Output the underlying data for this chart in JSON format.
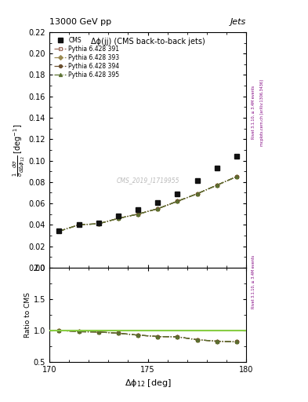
{
  "title_top": "13000 GeV pp",
  "title_right": "Jets",
  "plot_title": "Δϕ(jj) (CMS back-to-back jets)",
  "xlabel": "Δϕ$_{12}$ [deg]",
  "ylabel_main": "$\\frac{1}{\\sigma}\\frac{d\\sigma}{d\\Delta\\phi_{12}}$ [deg$^{-1}$]",
  "ylabel_ratio": "Ratio to CMS",
  "watermark": "CMS_2019_I1719955",
  "right_label": "Rivet 3.1.10, ≥ 3.4M events",
  "right_label2": "mcplots.cern.ch [arXiv:1306.3436]",
  "cms_x": [
    170.5,
    171.5,
    172.5,
    173.5,
    174.5,
    175.5,
    176.5,
    177.5,
    178.5,
    179.5
  ],
  "cms_y": [
    0.034,
    0.04,
    0.042,
    0.048,
    0.054,
    0.061,
    0.069,
    0.081,
    0.093,
    0.104
  ],
  "py391_y": [
    0.034,
    0.04,
    0.041,
    0.046,
    0.05,
    0.055,
    0.062,
    0.069,
    0.077,
    0.085
  ],
  "py393_y": [
    0.034,
    0.04,
    0.041,
    0.046,
    0.05,
    0.055,
    0.062,
    0.069,
    0.077,
    0.085
  ],
  "py394_y": [
    0.034,
    0.04,
    0.041,
    0.046,
    0.05,
    0.055,
    0.062,
    0.069,
    0.077,
    0.085
  ],
  "py395_y": [
    0.034,
    0.04,
    0.041,
    0.046,
    0.05,
    0.055,
    0.062,
    0.069,
    0.077,
    0.085
  ],
  "ratio391": [
    1.0,
    0.98,
    0.975,
    0.955,
    0.925,
    0.903,
    0.898,
    0.852,
    0.828,
    0.817
  ],
  "ratio393": [
    1.0,
    0.98,
    0.975,
    0.955,
    0.925,
    0.903,
    0.898,
    0.852,
    0.828,
    0.817
  ],
  "ratio394": [
    1.0,
    0.98,
    0.975,
    0.955,
    0.925,
    0.903,
    0.898,
    0.852,
    0.828,
    0.817
  ],
  "ratio395": [
    1.0,
    0.98,
    0.975,
    0.955,
    0.925,
    0.903,
    0.898,
    0.852,
    0.828,
    0.817
  ],
  "ylim_main": [
    0.0,
    0.22
  ],
  "ylim_ratio": [
    0.5,
    2.0
  ],
  "xlim": [
    170,
    180
  ],
  "cms_color": "#111111",
  "py391_color": "#9b6b5a",
  "py393_color": "#9b8a50",
  "py394_color": "#6b5030",
  "py395_color": "#5a7030",
  "ratio_line_color": "#88cc44"
}
